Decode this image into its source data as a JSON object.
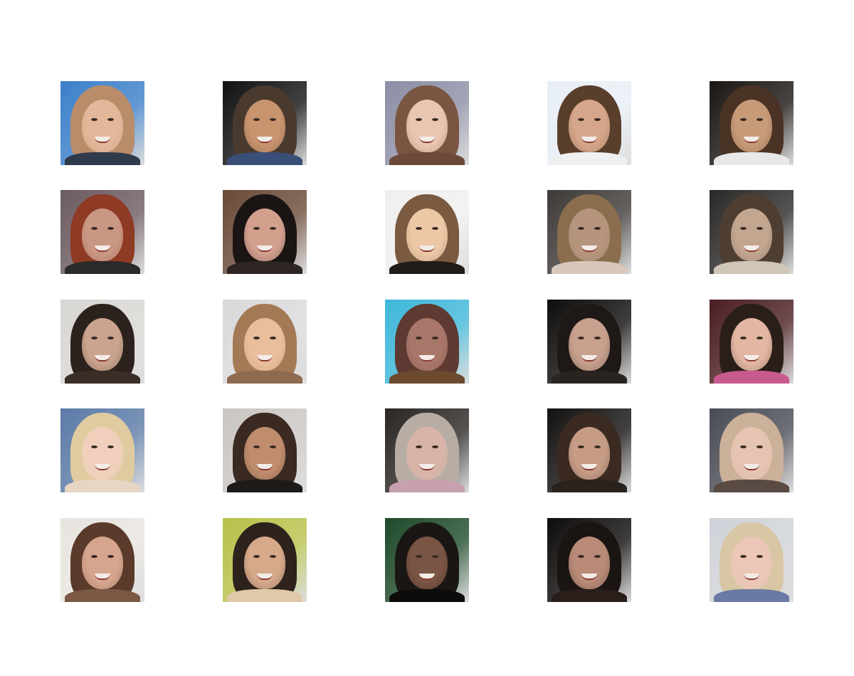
{
  "figure": {
    "rows": 5,
    "cols": 5,
    "background": "#ffffff",
    "tiles": [
      {
        "id": "r1c1",
        "bg": "#3b7fc9",
        "hair": "#b98d6a",
        "skin": "#e2b79a",
        "shoulders": "#2f3a4a"
      },
      {
        "id": "r1c2",
        "bg": "#121212",
        "hair": "#4a3a2e",
        "skin": "#c8946e",
        "shoulders": "#3a4f78"
      },
      {
        "id": "r1c3",
        "bg": "#8c8fa5",
        "hair": "#7a5642",
        "skin": "#e9c6b2",
        "shoulders": "#6b4a3a"
      },
      {
        "id": "r1c4",
        "bg": "#e8eef6",
        "hair": "#5a3e2c",
        "skin": "#d5a689",
        "shoulders": "#f0f0f0"
      },
      {
        "id": "r1c5",
        "bg": "#1b1613",
        "hair": "#4a3324",
        "skin": "#c79a78",
        "shoulders": "#e8e8e8"
      },
      {
        "id": "r2c1",
        "bg": "#6b5a5f",
        "hair": "#8e3a24",
        "skin": "#c99884",
        "shoulders": "#2a2a2a"
      },
      {
        "id": "r2c2",
        "bg": "#6a4a38",
        "hair": "#1a1412",
        "skin": "#d3a08e",
        "shoulders": "#2d2622"
      },
      {
        "id": "r2c3",
        "bg": "#f0efee",
        "hair": "#7a5a40",
        "skin": "#ecc8a6",
        "shoulders": "#1f1c1a"
      },
      {
        "id": "r2c4",
        "bg": "#3e3a38",
        "hair": "#8a6e4e",
        "skin": "#b5957e",
        "shoulders": "#d8c8bc"
      },
      {
        "id": "r2c5",
        "bg": "#2b2927",
        "hair": "#4e3e32",
        "skin": "#c3a690",
        "shoulders": "#cfc6b8"
      },
      {
        "id": "r3c1",
        "bg": "#d8d6d2",
        "hair": "#2c221d",
        "skin": "#caa48e",
        "shoulders": "#3a2e26"
      },
      {
        "id": "r3c2",
        "bg": "#d9d9dc",
        "hair": "#a37a55",
        "skin": "#e8be9c",
        "shoulders": "#8e6a4e"
      },
      {
        "id": "r3c3",
        "bg": "#3fb7d9",
        "hair": "#5e3a32",
        "skin": "#a8776a",
        "shoulders": "#6b4a30"
      },
      {
        "id": "r3c4",
        "bg": "#0f0d0c",
        "hair": "#1e1916",
        "skin": "#c7a08e",
        "shoulders": "#2a2420"
      },
      {
        "id": "r3c5",
        "bg": "#4a1e22",
        "hair": "#2a1e18",
        "skin": "#e2b6a2",
        "shoulders": "#c75a8e"
      },
      {
        "id": "r4c1",
        "bg": "#5b7aa6",
        "hair": "#e0cba0",
        "skin": "#f0d0bc",
        "shoulders": "#e8d6c4"
      },
      {
        "id": "r4c2",
        "bg": "#c9c6c2",
        "hair": "#3a2a22",
        "skin": "#c08c6e",
        "shoulders": "#1e1a18"
      },
      {
        "id": "r4c3",
        "bg": "#2a2623",
        "hair": "#b8ada4",
        "skin": "#d8b4a8",
        "shoulders": "#c8a0b0"
      },
      {
        "id": "r4c4",
        "bg": "#141210",
        "hair": "#3a2a20",
        "skin": "#c69c86",
        "shoulders": "#2a221c"
      },
      {
        "id": "r4c5",
        "bg": "#4a4c55",
        "hair": "#cbb09a",
        "skin": "#e6c4b2",
        "shoulders": "#5a4a44"
      },
      {
        "id": "r5c1",
        "bg": "#e8e4df",
        "hair": "#5a3a2a",
        "skin": "#d6a58e",
        "shoulders": "#7a5844"
      },
      {
        "id": "r5c2",
        "bg": "#b7c14a",
        "hair": "#2e221c",
        "skin": "#d6a98a",
        "shoulders": "#e0c8a8"
      },
      {
        "id": "r5c3",
        "bg": "#1e4a2a",
        "hair": "#1a1614",
        "skin": "#7a5444",
        "shoulders": "#0e0c0b"
      },
      {
        "id": "r5c4",
        "bg": "#0e0c0b",
        "hair": "#1a1412",
        "skin": "#b98a78",
        "shoulders": "#2a1e1a"
      },
      {
        "id": "r5c5",
        "bg": "#cfd2d8",
        "hair": "#d8c6a4",
        "skin": "#ecc6b6",
        "shoulders": "#6a7aa4"
      }
    ]
  }
}
